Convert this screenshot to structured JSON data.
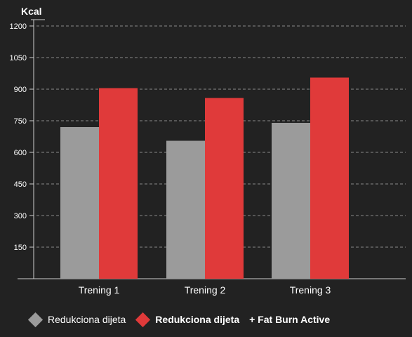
{
  "chart_data": {
    "type": "bar",
    "unit_label": "Kcal",
    "categories": [
      "Trening 1",
      "Trening 2",
      "Trening 3"
    ],
    "series": [
      {
        "name": "Redukciona dijeta",
        "color": "#9b9b9b",
        "values": [
          720,
          655,
          740
        ]
      },
      {
        "name": "Redukciona dijeta + Fat Burn Active",
        "color": "#e03a3a",
        "values": [
          905,
          858,
          955
        ]
      }
    ],
    "ylim": [
      0,
      1200
    ],
    "yticks": [
      150,
      300,
      450,
      600,
      750,
      900,
      1050,
      1200
    ],
    "grid": true,
    "legend_position": "bottom"
  },
  "legend": {
    "items": [
      {
        "label": "Redukciona dijeta",
        "color": "#9b9b9b"
      },
      {
        "label": "Redukciona dijeta",
        "suffix": "+ Fat Burn Active",
        "color": "#e03a3a"
      }
    ]
  }
}
